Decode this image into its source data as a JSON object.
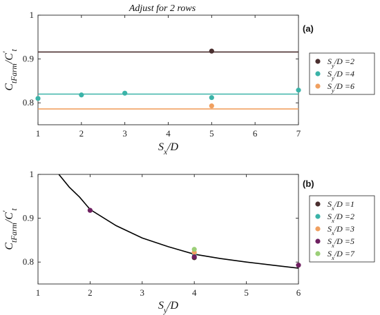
{
  "chart_data": [
    {
      "type": "scatter",
      "panel_label": "(a)",
      "title": "Adjust for 2 rows",
      "xlabel": "Sx/D",
      "ylabel": "CtFarm/C't",
      "xlim": [
        1,
        7
      ],
      "ylim": [
        0.75,
        1.0
      ],
      "xticks": [
        "1",
        "2",
        "3",
        "4",
        "5",
        "6",
        "7"
      ],
      "yticks": [
        "0.8",
        "0.9",
        "1"
      ],
      "grid": false,
      "legend_position": "right",
      "series": [
        {
          "name": "Sy/D =2",
          "color": "#4a2f2f",
          "points": [
            [
              5,
              0.918
            ]
          ],
          "fit_line": [
            [
              1,
              0.916
            ],
            [
              7,
              0.916
            ]
          ]
        },
        {
          "name": "Sy/D =4",
          "color": "#3bb3a8",
          "points": [
            [
              1,
              0.81
            ],
            [
              2,
              0.818
            ],
            [
              3,
              0.822
            ],
            [
              5,
              0.812
            ],
            [
              7,
              0.829
            ]
          ],
          "fit_line": [
            [
              1,
              0.82
            ],
            [
              7,
              0.82
            ]
          ]
        },
        {
          "name": "Sy/D =6",
          "color": "#f0a060",
          "points": [
            [
              5,
              0.793
            ]
          ],
          "fit_line": [
            [
              1,
              0.786
            ],
            [
              7,
              0.786
            ]
          ]
        }
      ]
    },
    {
      "type": "scatter",
      "panel_label": "(b)",
      "xlabel": "Sy/D",
      "ylabel": "CtFarm/C't",
      "xlim": [
        1,
        6
      ],
      "ylim": [
        0.75,
        1.0
      ],
      "xticks": [
        "1",
        "2",
        "3",
        "4",
        "5",
        "6"
      ],
      "yticks": [
        "0.8",
        "0.9",
        "1"
      ],
      "grid": false,
      "legend_position": "right",
      "fit_curve": {
        "color": "#000000",
        "points": [
          [
            1.4,
            1.0
          ],
          [
            1.6,
            0.971
          ],
          [
            1.8,
            0.948
          ],
          [
            2.0,
            0.92
          ],
          [
            2.5,
            0.883
          ],
          [
            3.0,
            0.855
          ],
          [
            3.5,
            0.835
          ],
          [
            4.0,
            0.818
          ],
          [
            4.5,
            0.808
          ],
          [
            5.0,
            0.8
          ],
          [
            5.5,
            0.793
          ],
          [
            6.0,
            0.786
          ]
        ]
      },
      "series": [
        {
          "name": "Sx/D =1",
          "color": "#4a2f2f",
          "points": [
            [
              4,
              0.81
            ]
          ]
        },
        {
          "name": "Sx/D =2",
          "color": "#3bb3a8",
          "points": [
            [
              4,
              0.818
            ]
          ]
        },
        {
          "name": "Sx/D =3",
          "color": "#f0a060",
          "points": [
            [
              4,
              0.822
            ]
          ]
        },
        {
          "name": "Sx/D =5",
          "color": "#6e2060",
          "points": [
            [
              2,
              0.918
            ],
            [
              4,
              0.812
            ],
            [
              6,
              0.793
            ]
          ]
        },
        {
          "name": "Sx/D =7",
          "color": "#9ccf78",
          "points": [
            [
              4,
              0.829
            ]
          ]
        }
      ]
    }
  ]
}
